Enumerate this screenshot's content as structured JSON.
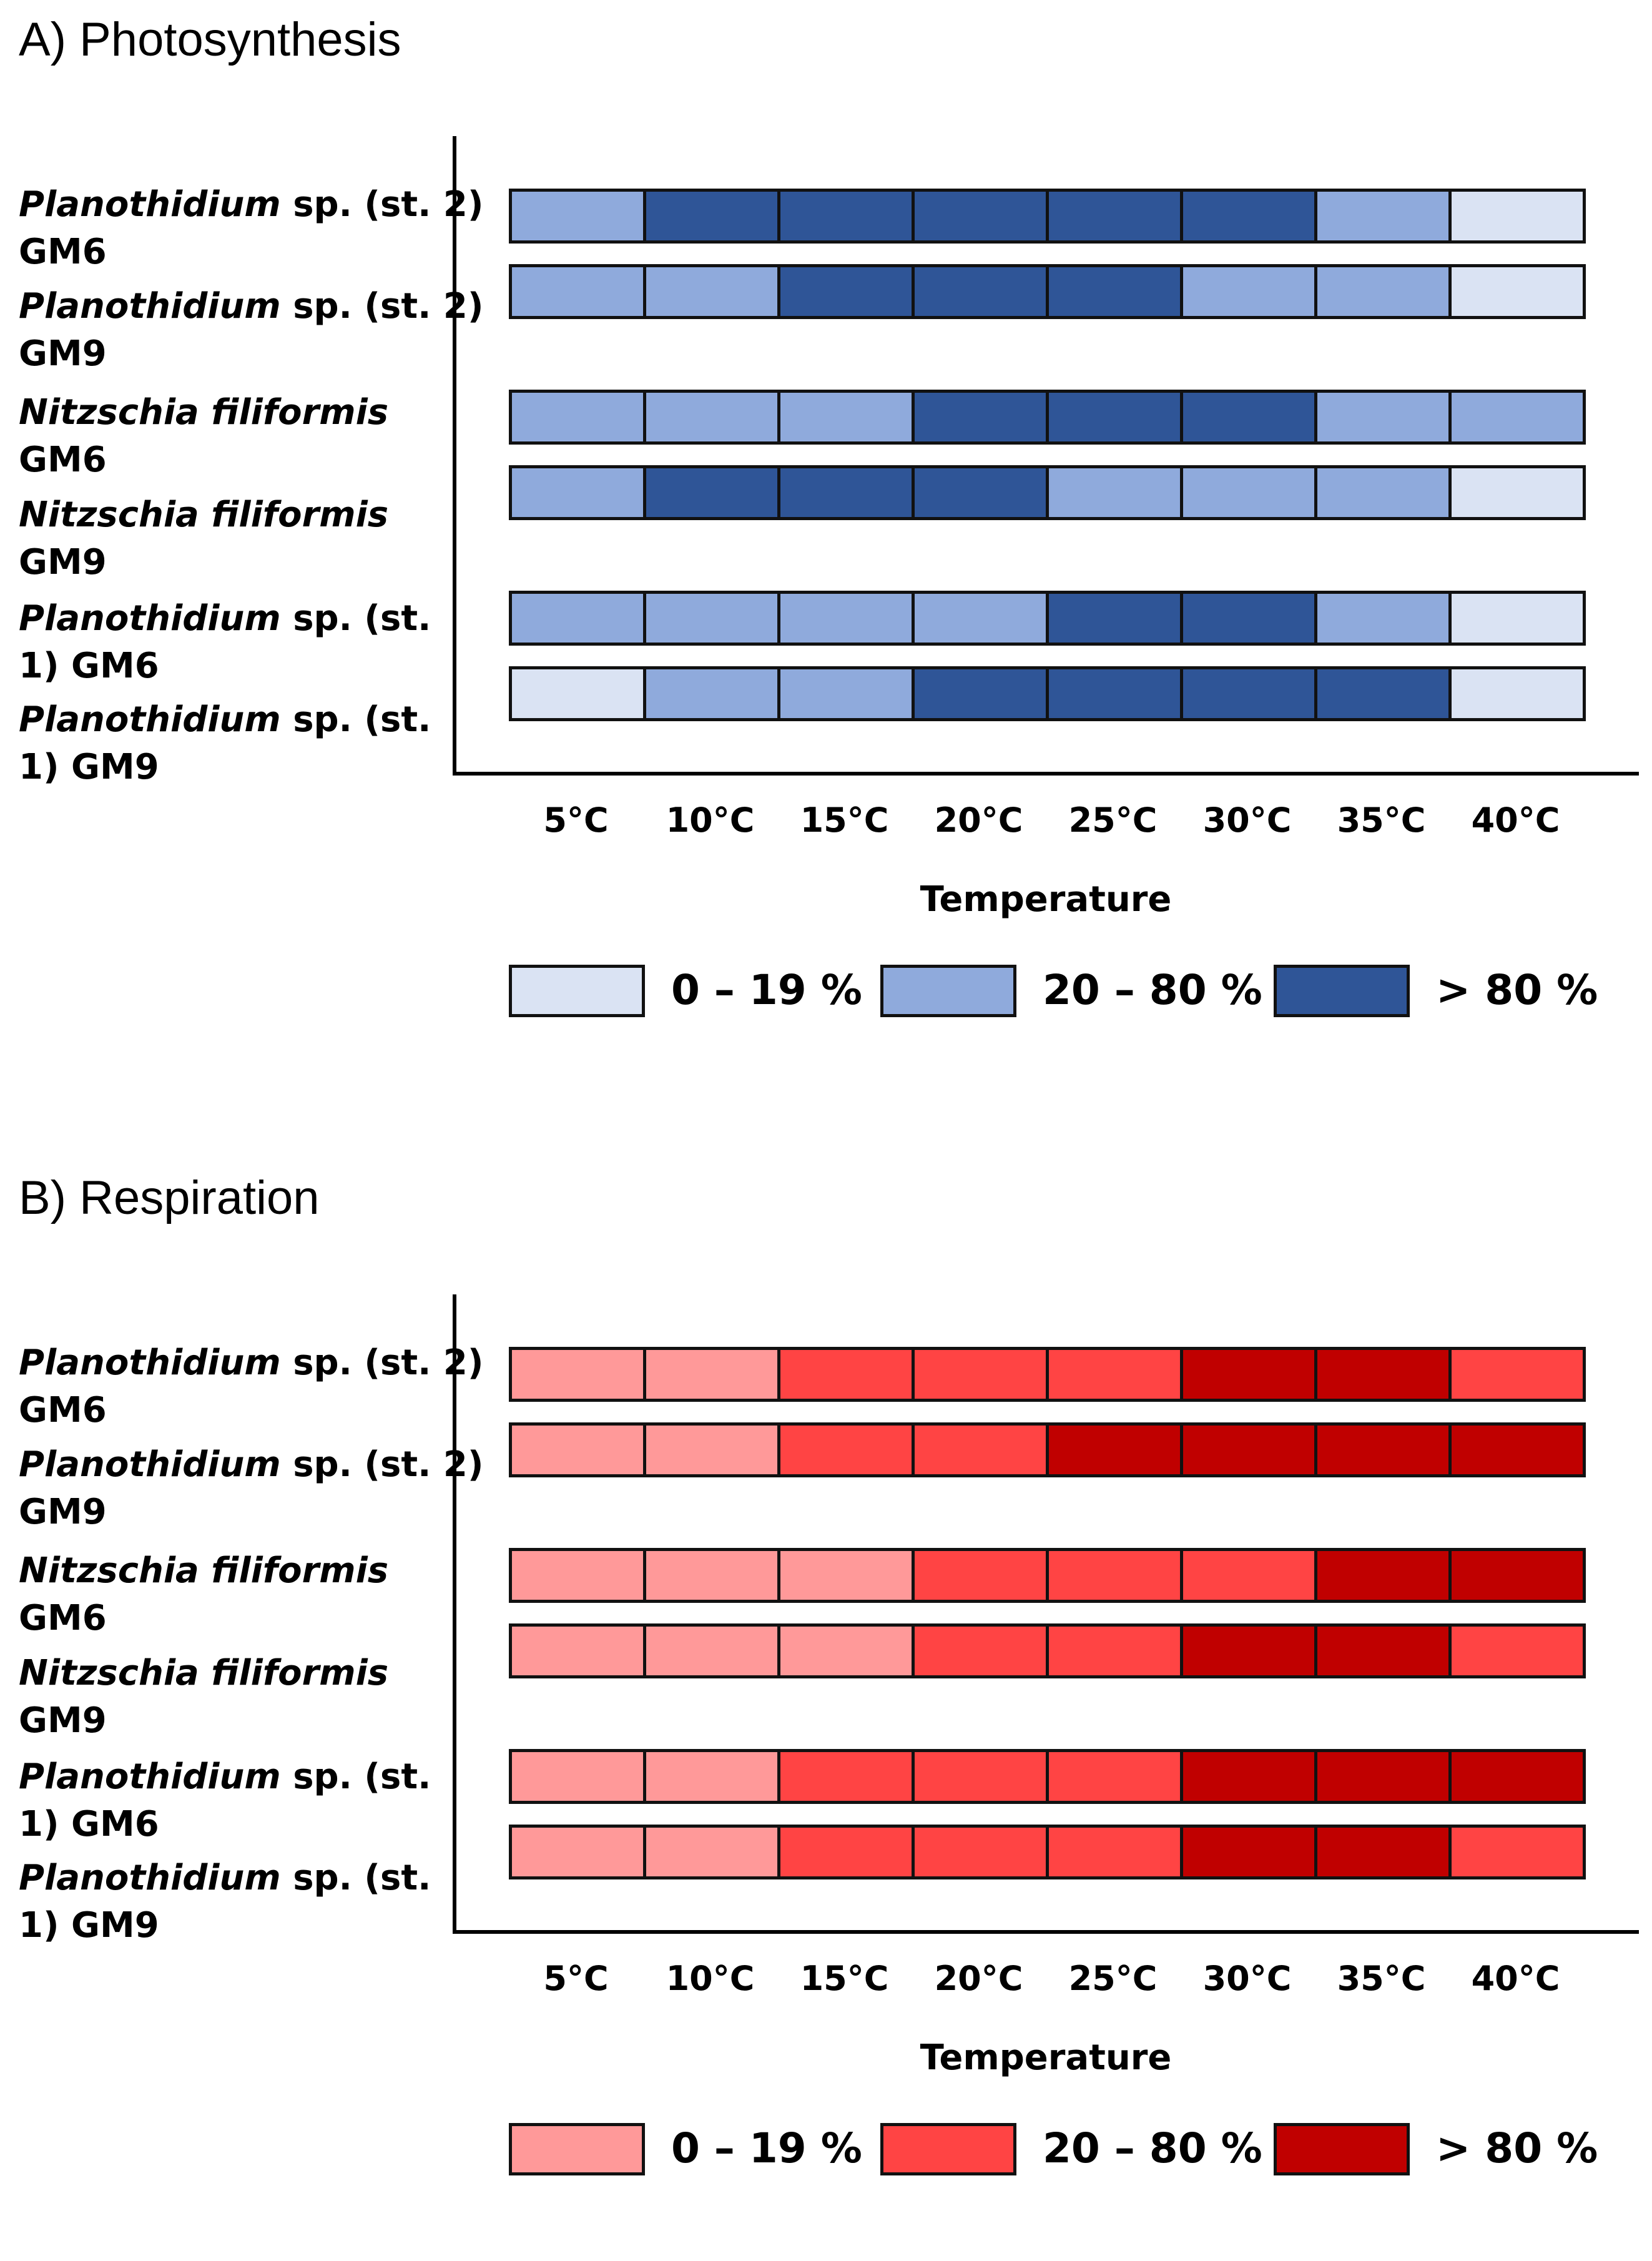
{
  "chart_data": [
    {
      "type": "heatmap",
      "title": "A) Photosynthesis",
      "xlabel": "Temperature",
      "categories": [
        "5°C",
        "10°C",
        "15°C",
        "20°C",
        "25°C",
        "30°C",
        "35°C",
        "40°C"
      ],
      "legend": [
        {
          "label": "0 – 19 %",
          "level": 0,
          "color": "#dae3f3"
        },
        {
          "label": "20 – 80 %",
          "level": 1,
          "color": "#8faadc"
        },
        {
          "label": "> 80 %",
          "level": 2,
          "color": "#2f5597"
        }
      ],
      "rows": [
        {
          "taxon": "Planothidium",
          "taxon_rest": " sp. (st. 2)",
          "line2": "GM6",
          "values": [
            1,
            2,
            2,
            2,
            2,
            2,
            1,
            0
          ]
        },
        {
          "taxon": "Planothidium",
          "taxon_rest": " sp. (st. 2)",
          "line2": "GM9",
          "values": [
            1,
            1,
            2,
            2,
            2,
            1,
            1,
            0
          ]
        },
        {
          "taxon": "Nitzschia filiformis",
          "taxon_rest": "",
          "line2": "GM6",
          "values": [
            1,
            1,
            1,
            2,
            2,
            2,
            1,
            1
          ]
        },
        {
          "taxon": "Nitzschia filiformis",
          "taxon_rest": "",
          "line2": "GM9",
          "values": [
            1,
            2,
            2,
            2,
            1,
            1,
            1,
            0
          ]
        },
        {
          "taxon": "Planothidium",
          "taxon_rest": " sp. (st.",
          "line2": "1) GM6",
          "values": [
            1,
            1,
            1,
            1,
            2,
            2,
            1,
            0
          ]
        },
        {
          "taxon": "Planothidium",
          "taxon_rest": " sp. (st.",
          "line2": "1) GM9",
          "values": [
            0,
            1,
            1,
            2,
            2,
            2,
            2,
            0
          ]
        }
      ]
    },
    {
      "type": "heatmap",
      "title": "B) Respiration",
      "xlabel": "Temperature",
      "categories": [
        "5°C",
        "10°C",
        "15°C",
        "20°C",
        "25°C",
        "30°C",
        "35°C",
        "40°C"
      ],
      "legend": [
        {
          "label": "0 – 19 %",
          "level": 0,
          "color": "#ff9999"
        },
        {
          "label": "20 – 80 %",
          "level": 1,
          "color": "#ff4444"
        },
        {
          "label": "> 80 %",
          "level": 2,
          "color": "#c00000"
        }
      ],
      "rows": [
        {
          "taxon": "Planothidium",
          "taxon_rest": " sp. (st. 2)",
          "line2": "GM6",
          "values": [
            0,
            0,
            1,
            1,
            1,
            2,
            2,
            1
          ]
        },
        {
          "taxon": "Planothidium",
          "taxon_rest": " sp. (st. 2)",
          "line2": "GM9",
          "values": [
            0,
            0,
            1,
            1,
            2,
            2,
            2,
            2
          ]
        },
        {
          "taxon": "Nitzschia filiformis",
          "taxon_rest": "",
          "line2": "GM6",
          "values": [
            0,
            0,
            0,
            1,
            1,
            1,
            2,
            2
          ]
        },
        {
          "taxon": "Nitzschia filiformis",
          "taxon_rest": "",
          "line2": "GM9",
          "values": [
            0,
            0,
            0,
            1,
            1,
            2,
            2,
            1
          ]
        },
        {
          "taxon": "Planothidium",
          "taxon_rest": " sp. (st.",
          "line2": "1) GM6",
          "values": [
            0,
            0,
            1,
            1,
            1,
            2,
            2,
            2
          ]
        },
        {
          "taxon": "Planothidium",
          "taxon_rest": " sp. (st.",
          "line2": "1) GM9",
          "values": [
            0,
            0,
            1,
            1,
            1,
            2,
            2,
            1
          ]
        }
      ]
    }
  ]
}
